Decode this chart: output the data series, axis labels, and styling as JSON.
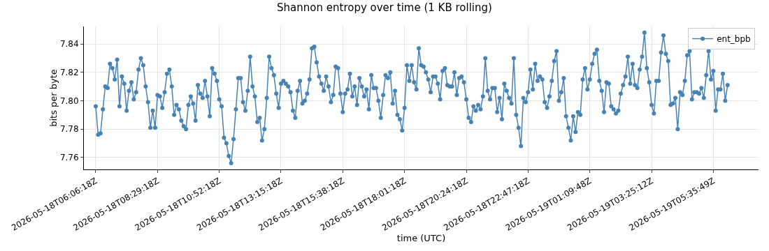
{
  "chart_data": {
    "type": "line",
    "title": "Shannon entropy over time (1 KB rolling)",
    "xlabel": "time (UTC)",
    "ylabel": "bits per byte",
    "categories": [
      "2026-05-18T06:06:18Z",
      null,
      null,
      null,
      null,
      null,
      null,
      null,
      null,
      null,
      null,
      null,
      null,
      null,
      null,
      null,
      null,
      null,
      null,
      null,
      null,
      null,
      null,
      null,
      null,
      null,
      "2026-05-18T08:29:18Z",
      null,
      null,
      null,
      null,
      null,
      null,
      null,
      null,
      null,
      null,
      null,
      null,
      null,
      null,
      null,
      null,
      null,
      null,
      null,
      null,
      null,
      null,
      null,
      null,
      null,
      "2026-05-18T10:52:18Z",
      null,
      null,
      null,
      null,
      null,
      null,
      null,
      null,
      null,
      null,
      null,
      null,
      null,
      null,
      null,
      null,
      null,
      null,
      null,
      null,
      null,
      null,
      null,
      null,
      null,
      "2026-05-18T13:15:18Z",
      null,
      null,
      null,
      null,
      null,
      null,
      null,
      null,
      null,
      null,
      null,
      null,
      null,
      null,
      null,
      null,
      null,
      null,
      null,
      null,
      null,
      null,
      null,
      null,
      null,
      "2026-05-18T15:38:18Z",
      null,
      null,
      null,
      null,
      null,
      null,
      null,
      null,
      null,
      null,
      null,
      null,
      null,
      null,
      null,
      null,
      null,
      null,
      null,
      null,
      null,
      null,
      null,
      null,
      null,
      "2026-05-18T18:01:18Z",
      null,
      null,
      null,
      null,
      null,
      null,
      null,
      null,
      null,
      null,
      null,
      null,
      null,
      null,
      null,
      null,
      null,
      null,
      null,
      null,
      null,
      null,
      null,
      null,
      null,
      "2026-05-18T20:24:18Z",
      null,
      null,
      null,
      null,
      null,
      null,
      null,
      null,
      null,
      null,
      null,
      null,
      null,
      null,
      null,
      null,
      null,
      null,
      null,
      null,
      null,
      null,
      null,
      null,
      null,
      "2026-05-18T22:47:18Z",
      null,
      null,
      null,
      null,
      null,
      null,
      null,
      null,
      null,
      null,
      null,
      null,
      null,
      null,
      null,
      null,
      null,
      null,
      null,
      null,
      null,
      null,
      null,
      null,
      null,
      "2026-05-19T01:09:48Z",
      null,
      null,
      null,
      null,
      null,
      null,
      null,
      null,
      null,
      null,
      null,
      null,
      null,
      null,
      null,
      null,
      null,
      null,
      null,
      null,
      null,
      null,
      null,
      null,
      null,
      "2026-05-19T03:25:12Z",
      null,
      null,
      null,
      null,
      null,
      null,
      null,
      null,
      null,
      null,
      null,
      null,
      null,
      null,
      null,
      null,
      null,
      null,
      null,
      null,
      null,
      null,
      null,
      null,
      null,
      "2026-05-19T05:35:49Z",
      null,
      null,
      null,
      null,
      null,
      null
    ],
    "ylim": [
      7.7516,
      7.8523
    ],
    "yticks": [
      {
        "value": 7.76,
        "label": "7.76"
      },
      {
        "value": 7.78,
        "label": "7.78"
      },
      {
        "value": 7.8,
        "label": "7.80"
      },
      {
        "value": 7.82,
        "label": "7.82"
      },
      {
        "value": 7.84,
        "label": "7.84"
      }
    ],
    "grid": true,
    "legend": "top right",
    "marker": "circle",
    "line_style": "solid",
    "series": [
      {
        "name": "ent_bpb",
        "color": "#4682b4",
        "values": [
          7.796,
          7.776,
          7.777,
          7.794,
          7.81,
          7.809,
          7.826,
          7.823,
          7.815,
          7.829,
          7.796,
          7.817,
          7.812,
          7.793,
          7.807,
          7.813,
          7.801,
          7.806,
          7.822,
          7.83,
          7.825,
          7.81,
          7.799,
          7.781,
          7.793,
          7.781,
          7.804,
          7.803,
          7.795,
          7.806,
          7.819,
          7.822,
          7.81,
          7.79,
          7.797,
          7.794,
          7.786,
          7.782,
          7.78,
          7.797,
          7.803,
          7.798,
          7.786,
          7.811,
          7.805,
          7.802,
          7.814,
          7.803,
          7.789,
          7.823,
          7.819,
          7.814,
          7.801,
          7.796,
          7.774,
          7.77,
          7.761,
          7.756,
          7.773,
          7.794,
          7.816,
          7.816,
          7.799,
          7.793,
          7.807,
          7.831,
          7.81,
          7.803,
          7.785,
          7.788,
          7.772,
          7.78,
          7.802,
          7.831,
          7.823,
          7.818,
          7.805,
          7.795,
          7.812,
          7.814,
          7.812,
          7.81,
          7.806,
          7.793,
          7.788,
          7.807,
          7.814,
          7.798,
          7.8,
          7.805,
          7.815,
          7.837,
          7.838,
          7.827,
          7.817,
          7.812,
          7.807,
          7.817,
          7.81,
          7.799,
          7.804,
          7.824,
          7.823,
          7.805,
          7.792,
          7.805,
          7.808,
          7.819,
          7.803,
          7.81,
          7.797,
          7.816,
          7.81,
          7.803,
          7.808,
          7.794,
          7.818,
          7.809,
          7.809,
          7.8,
          7.788,
          7.804,
          7.818,
          7.816,
          7.82,
          7.798,
          7.807,
          7.79,
          7.787,
          7.779,
          7.795,
          7.825,
          7.814,
          7.825,
          7.813,
          7.808,
          7.837,
          7.825,
          7.824,
          7.82,
          7.815,
          7.806,
          7.817,
          7.817,
          7.812,
          7.801,
          7.821,
          7.823,
          7.811,
          7.81,
          7.81,
          7.82,
          7.804,
          7.816,
          7.817,
          7.813,
          7.801,
          7.788,
          7.785,
          7.796,
          7.793,
          7.797,
          7.794,
          7.803,
          7.83,
          7.807,
          7.801,
          7.809,
          7.809,
          7.792,
          7.802,
          7.787,
          7.812,
          7.807,
          7.802,
          7.798,
          7.83,
          7.79,
          7.781,
          7.768,
          7.802,
          7.799,
          7.806,
          7.822,
          7.808,
          7.826,
          7.814,
          7.817,
          7.815,
          7.799,
          7.795,
          7.803,
          7.814,
          7.828,
          7.835,
          7.8,
          7.806,
          7.816,
          7.789,
          7.781,
          7.772,
          7.789,
          7.778,
          7.792,
          7.79,
          7.815,
          7.823,
          7.808,
          7.815,
          7.826,
          7.833,
          7.836,
          7.814,
          7.807,
          7.792,
          7.813,
          7.812,
          7.796,
          7.794,
          7.791,
          7.793,
          7.805,
          7.811,
          7.817,
          7.831,
          7.812,
          7.826,
          7.811,
          7.809,
          7.822,
          7.831,
          7.848,
          7.823,
          7.813,
          7.797,
          7.791,
          7.814,
          7.814,
          7.834,
          7.846,
          7.833,
          7.828,
          7.797,
          7.798,
          7.802,
          7.78,
          7.806,
          7.804,
          7.814,
          7.832,
          7.835,
          7.801,
          7.806,
          7.806,
          7.805,
          7.809,
          7.802,
          7.818,
          7.835,
          7.815,
          7.821,
          7.793,
          7.808,
          7.808,
          7.819,
          7.8,
          7.811
        ]
      }
    ]
  }
}
